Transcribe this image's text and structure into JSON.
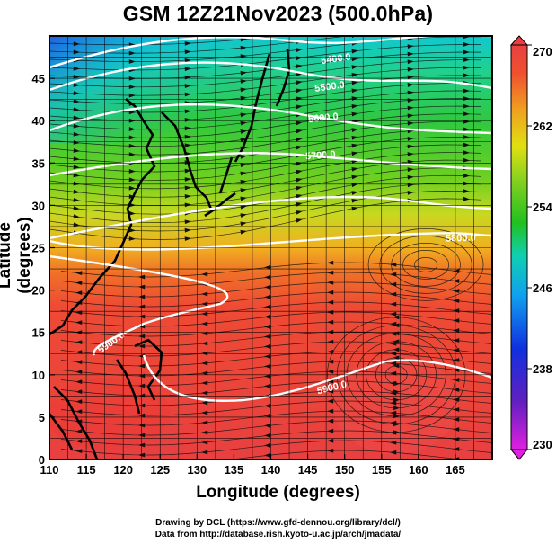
{
  "title": "GSM 12Z21Nov2023 (500.0hPa)",
  "x_axis": {
    "label": "Longitude (degrees)",
    "range": [
      110,
      170
    ],
    "ticks": [
      "110",
      "115",
      "120",
      "125",
      "130",
      "135",
      "140",
      "145",
      "150",
      "155",
      "160",
      "165"
    ]
  },
  "y_axis": {
    "label": "Latitude  (degrees)",
    "range": [
      0,
      50
    ],
    "ticks": [
      "0",
      "5",
      "10",
      "15",
      "20",
      "25",
      "30",
      "35",
      "40",
      "45"
    ]
  },
  "colorbar": {
    "ticks": [
      "230",
      "238",
      "246",
      "254",
      "262",
      "270"
    ],
    "min": 230,
    "max": 270,
    "colors": [
      "#e020e0",
      "#6020c0",
      "#1030e0",
      "#10a0f0",
      "#10d0b0",
      "#20c020",
      "#80d020",
      "#e0e010",
      "#f0a020",
      "#f05030",
      "#e84040"
    ]
  },
  "contours": [
    {
      "label": "5400.0"
    },
    {
      "label": "5500.0"
    },
    {
      "label": "5600.0"
    },
    {
      "label": "5700.0"
    },
    {
      "label": "5800.0"
    },
    {
      "label": "5900.0"
    },
    {
      "label": "5900.0"
    },
    {
      "label": "5900.0"
    }
  ],
  "credits": [
    "Drawing by DCL (https://www.gfd-dennou.org/library/dcl/)",
    "Data from http://database.rish.kyoto-u.ac.jp/arch/jmadata/"
  ]
}
